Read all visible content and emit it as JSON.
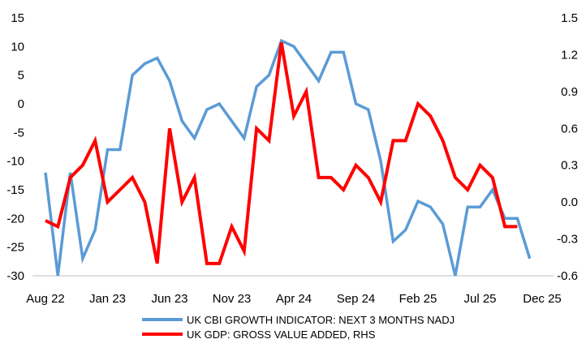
{
  "chart_data": {
    "type": "line",
    "title": "",
    "xlabel": "",
    "ylabel_left": "",
    "ylabel_right": "",
    "x_tick_labels": [
      "Aug 22",
      "Jan 23",
      "Jun 23",
      "Nov 23",
      "Apr 24",
      "Sep 24",
      "Feb 25",
      "Jul 25",
      "Dec 25"
    ],
    "x_tick_month_index": [
      0,
      5,
      10,
      15,
      20,
      25,
      30,
      35,
      40
    ],
    "ylim_left": [
      -30,
      15
    ],
    "yticks_left": [
      "15",
      "10",
      "5",
      "0",
      "-5",
      "-10",
      "-15",
      "-20",
      "-25",
      "-30"
    ],
    "yticks_left_values": [
      15,
      10,
      5,
      0,
      -5,
      -10,
      -15,
      -20,
      -25,
      -30
    ],
    "ylim_right": [
      -0.6,
      1.5
    ],
    "yticks_right": [
      "1.5",
      "1.2",
      "0.9",
      "0.6",
      "0.3",
      "0.0",
      "-0.3",
      "-0.6"
    ],
    "yticks_right_values": [
      1.5,
      1.2,
      0.9,
      0.6,
      0.3,
      0.0,
      -0.3,
      -0.6
    ],
    "legend_position": "bottom",
    "series": [
      {
        "name": "UK CBI GROWTH INDICATOR: NEXT 3 MONTHS NADJ",
        "axis": "left",
        "color": "#5B9BD5",
        "x": [
          0,
          1,
          2,
          3,
          4,
          5,
          6,
          7,
          8,
          9,
          10,
          11,
          12,
          13,
          14,
          15,
          16,
          17,
          18,
          19,
          20,
          21,
          22,
          23,
          24,
          25,
          26,
          27,
          28,
          29,
          30,
          31,
          32,
          33,
          34,
          35,
          36,
          37,
          38,
          39
        ],
        "values": [
          -12,
          -30,
          -12,
          -27,
          -22,
          -8,
          -8,
          5,
          7,
          8,
          4,
          -3,
          -6,
          -1,
          0,
          -3,
          -6,
          3,
          5,
          11,
          10,
          7,
          4,
          9,
          9,
          0,
          -1,
          -10,
          -24,
          -22,
          -17,
          -18,
          -21,
          -30,
          -18,
          -18,
          -15,
          -20,
          -20,
          -27
        ]
      },
      {
        "name": "UK GDP: GROSS VALUE ADDED, RHS",
        "axis": "right",
        "color": "#FF0000",
        "x": [
          0,
          1,
          2,
          3,
          4,
          5,
          6,
          7,
          8,
          9,
          10,
          11,
          12,
          13,
          14,
          15,
          16,
          17,
          18,
          19,
          20,
          21,
          22,
          23,
          24,
          25,
          26,
          27,
          28,
          29,
          30,
          31,
          32,
          33,
          34,
          35,
          36,
          37,
          38
        ],
        "values": [
          -0.15,
          -0.2,
          0.2,
          0.3,
          0.5,
          0.0,
          0.1,
          0.2,
          0.0,
          -0.5,
          0.6,
          0.0,
          0.2,
          -0.5,
          -0.5,
          -0.2,
          -0.4,
          0.6,
          0.5,
          1.3,
          0.7,
          0.9,
          0.2,
          0.2,
          0.1,
          0.3,
          0.2,
          0.0,
          0.5,
          0.5,
          0.8,
          0.7,
          0.5,
          0.2,
          0.1,
          0.3,
          0.2,
          -0.2,
          -0.2
        ]
      }
    ]
  }
}
